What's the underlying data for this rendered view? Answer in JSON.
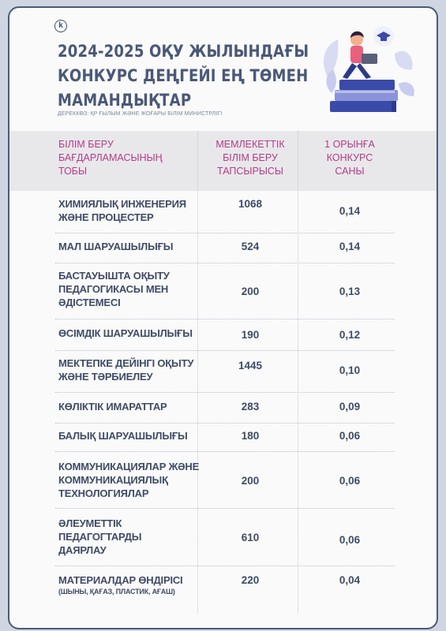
{
  "logo_letter": "k",
  "title_lines": [
    "2024-2025 ОҚУ ЖЫЛЫНДАҒЫ",
    "КОНКУРС ДЕҢГЕЙІ ЕҢ ТӨМЕН",
    "МАМАНДЫҚТАР"
  ],
  "source": "ДЕРЕККӨЗ: ҚР ҒЫЛЫМ ЖӘНЕ ЖОҒАРЫ БІЛІМ МИНИСТРЛІГІ",
  "illustration": "student-on-books-illustration",
  "colors": {
    "accent": "#b43b8b",
    "text": "#3f4b66",
    "header_bg": "#e8e8ea",
    "border": "#4a5b78"
  },
  "table": {
    "headers": [
      [
        "БІЛІМ БЕРУ",
        "БАҒДАРЛАМАСЫНЫҢ",
        "ТОБЫ"
      ],
      [
        "МЕМЛЕКЕТТІК",
        "БІЛІМ БЕРУ",
        "ТАПСЫРЫСЫ"
      ],
      [
        "1 ОРЫНҒА",
        "КОНКУРС",
        "САНЫ"
      ]
    ],
    "rows": [
      {
        "name": [
          "ХИМИЯЛЫҚ ИНЖЕНЕРИЯ",
          "ЖӘНЕ ПРОЦЕСТЕР"
        ],
        "order": "1068",
        "ratio": "0,14"
      },
      {
        "name": [
          "МАЛ ШАРУАШЫЛЫҒЫ"
        ],
        "order": "524",
        "ratio": "0,14"
      },
      {
        "name": [
          "БАСТАУЫШТА ОҚЫТУ",
          "ПЕДАГОГИКАСЫ МЕН",
          "ӘДІСТЕМЕСІ"
        ],
        "order": "200",
        "ratio": "0,13"
      },
      {
        "name": [
          "ӨСІМДІК ШАРУАШЫЛЫҒЫ"
        ],
        "order": "190",
        "ratio": "0,12"
      },
      {
        "name": [
          "МЕКТЕПКЕ ДЕЙІНГІ ОҚЫТУ",
          "ЖӘНЕ ТӘРБИЕЛЕУ"
        ],
        "order": "1445",
        "ratio": "0,10"
      },
      {
        "name": [
          "КӨЛІКТІК ИМАРАТТАР"
        ],
        "order": "283",
        "ratio": "0,09"
      },
      {
        "name": [
          "БАЛЫҚ ШАРУАШЫЛЫҒЫ"
        ],
        "order": "180",
        "ratio": "0,06"
      },
      {
        "name": [
          "КОММУНИКАЦИЯЛАР ЖӘНЕ",
          "КОММУНИКАЦИЯЛЫҚ",
          "ТЕХНОЛОГИЯЛАР"
        ],
        "order": "200",
        "ratio": "0,06"
      },
      {
        "name": [
          "ӘЛЕУМЕТТІК",
          "ПЕДАГОГТАРДЫ",
          "ДАЯРЛАУ"
        ],
        "order": "610",
        "ratio": "0,06"
      },
      {
        "name": [
          "МАТЕРИАЛДАР ӨНДІРІСІ"
        ],
        "sub": "(ШЫНЫ, ҚАҒАЗ, ПЛАСТИК, АҒАШ)",
        "order": "220",
        "ratio": "0,04"
      }
    ]
  }
}
